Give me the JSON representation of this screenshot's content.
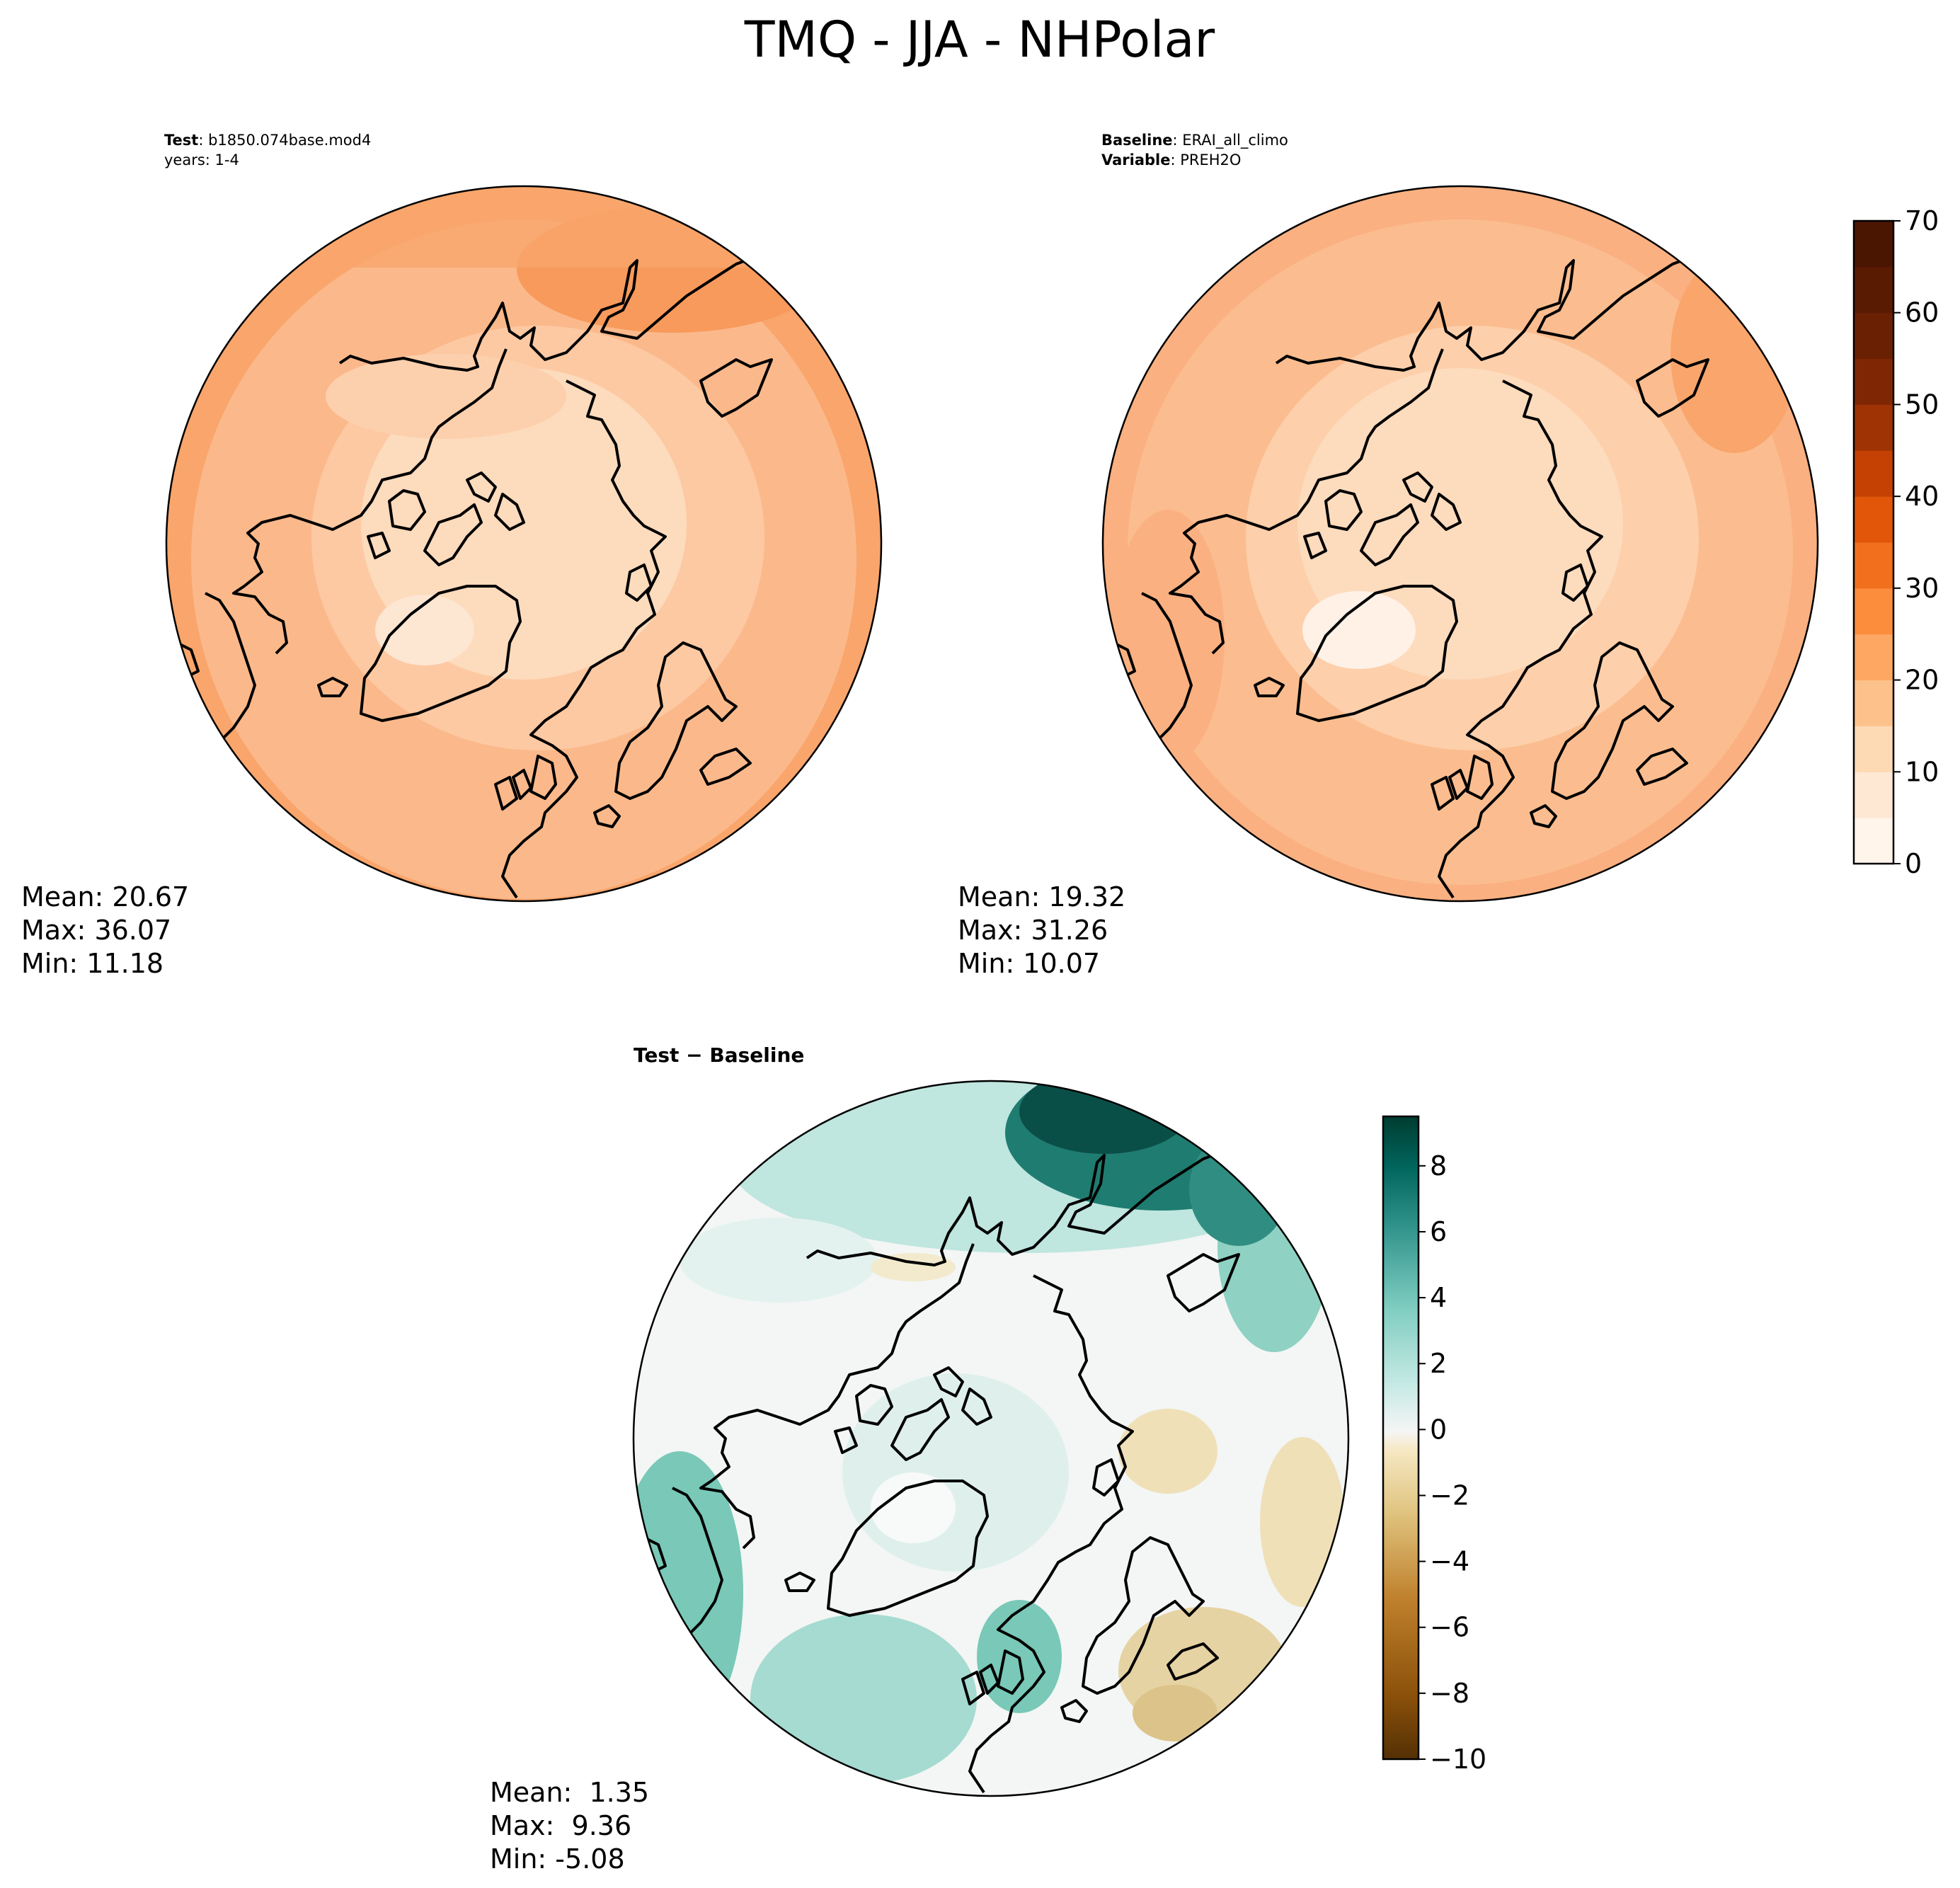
{
  "figure": {
    "title": "TMQ - JJA - NHPolar"
  },
  "panels": {
    "test": {
      "line1_bold": "Test",
      "line1_text": ": b1850.074base.mod4",
      "line2_text": "years: 1-4",
      "stats": [
        "Mean: 20.67",
        "Max: 36.07",
        "Min: 11.18"
      ]
    },
    "baseline": {
      "line1_bold": "Baseline",
      "line1_text": ": ERAI_all_climo",
      "line2_bold": "Variable",
      "line2_text": ": PREH2O",
      "stats": [
        "Mean: 19.32",
        "Max: 31.26",
        "Min: 10.07"
      ]
    },
    "diff": {
      "title": "Test − Baseline",
      "stats": [
        "Mean:  1.35",
        "Max:  9.36",
        "Min: -5.08"
      ]
    }
  },
  "chart_data": [
    {
      "type": "heatmap",
      "name": "test",
      "projection": "north-polar-stereographic",
      "mean": 20.67,
      "max": 36.07,
      "min": 11.18,
      "contour_levels": [
        0,
        5,
        10,
        15,
        20,
        25,
        30,
        35,
        40,
        45,
        50,
        55,
        60,
        65,
        70
      ],
      "colormap": "Oranges"
    },
    {
      "type": "heatmap",
      "name": "baseline",
      "projection": "north-polar-stereographic",
      "mean": 19.32,
      "max": 31.26,
      "min": 10.07,
      "contour_levels": [
        0,
        5,
        10,
        15,
        20,
        25,
        30,
        35,
        40,
        45,
        50,
        55,
        60,
        65,
        70
      ],
      "colormap": "Oranges"
    },
    {
      "type": "heatmap",
      "name": "difference",
      "projection": "north-polar-stereographic",
      "mean": 1.35,
      "max": 9.36,
      "min": -5.08,
      "colormap": "BrBG"
    }
  ],
  "colorbars": {
    "top": {
      "min": 0,
      "max": 70,
      "step": 5,
      "ticks": [
        "0",
        "10",
        "20",
        "30",
        "40",
        "50",
        "60",
        "70"
      ],
      "colors": [
        "#fff5eb",
        "#fee8d3",
        "#fdd9b4",
        "#fdc28c",
        "#fda762",
        "#fb8d3d",
        "#f2701d",
        "#e25609",
        "#c44103",
        "#9f3303",
        "#7f2704",
        "#6a2003",
        "#5a1b03",
        "#4a1602"
      ]
    },
    "bottom": {
      "min": -10,
      "max": 9.5,
      "ticks": [
        "−10",
        "−8",
        "−6",
        "−4",
        "−2",
        "0",
        "2",
        "4",
        "6",
        "8"
      ],
      "tick_values": [
        -10,
        -8,
        -6,
        -4,
        -2,
        0,
        2,
        4,
        6,
        8
      ]
    }
  },
  "colors": {
    "test_base": "#fbb98b",
    "baseline_base": "#fbbd8f",
    "test_outer": "#f9a56c",
    "baseline_outer": "#fab080",
    "inner_light": "#fddbbd",
    "inner_lighter": "#fde6d2",
    "greenland_light": "#fff1e6",
    "diff_base": "#f3f6f4",
    "diff_teal_light": "#bfe6df",
    "diff_teal": "#79c8b8",
    "diff_teal_dark": "#1f7c70",
    "diff_teal_darkest": "#0a4f47",
    "diff_brown_light": "#efe0b8",
    "diff_brown": "#dcc38a"
  }
}
